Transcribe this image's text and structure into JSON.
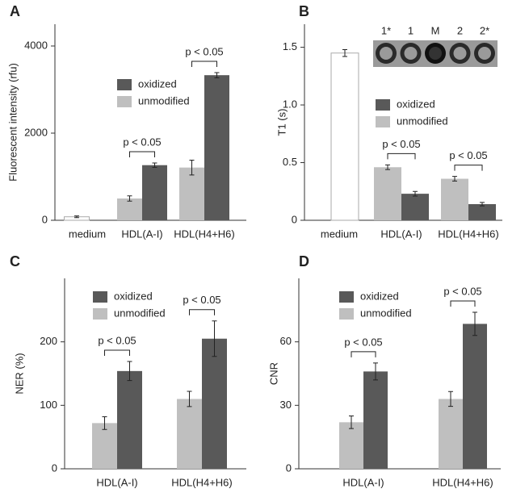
{
  "chart_data": [
    {
      "type": "bar",
      "panel_label": "A",
      "y_label": "Fluorescent intensity (rfu)",
      "categories": [
        "medium",
        "HDL(A-I)",
        "HDL(H4+H6)"
      ],
      "series": [
        {
          "color": "#ffffff",
          "values": [
            80,
            null,
            null
          ],
          "errors": [
            20,
            null,
            null
          ]
        },
        {
          "name": "unmodified",
          "color": "#bfbfbf",
          "values": [
            null,
            500,
            1210
          ],
          "errors": [
            null,
            60,
            170
          ]
        },
        {
          "name": "oxidized",
          "color": "#595959",
          "values": [
            null,
            1265,
            3330
          ],
          "errors": [
            null,
            50,
            60
          ]
        }
      ],
      "annotations": [
        {
          "text": "p < 0.05",
          "category": 1
        },
        {
          "text": "p < 0.05",
          "category": 2
        }
      ],
      "ylim": [
        0,
        4500
      ],
      "yticks": [
        0,
        2000,
        4000
      ]
    },
    {
      "type": "bar",
      "panel_label": "B",
      "y_label": "T1 (s)",
      "categories": [
        "medium",
        "HDL(A-I)",
        "HDL(H4+H6)"
      ],
      "series": [
        {
          "color": "#ffffff",
          "values": [
            1.45,
            null,
            null
          ],
          "errors": [
            0.03,
            null,
            null
          ]
        },
        {
          "name": "unmodified",
          "color": "#bfbfbf",
          "values": [
            null,
            0.46,
            0.36
          ],
          "errors": [
            null,
            0.02,
            0.02
          ]
        },
        {
          "name": "oxidized",
          "color": "#595959",
          "values": [
            null,
            0.23,
            0.14
          ],
          "errors": [
            null,
            0.02,
            0.015
          ]
        }
      ],
      "annotations": [
        {
          "text": "p < 0.05",
          "category": 1
        },
        {
          "text": "p < 0.05",
          "category": 2
        }
      ],
      "inset_labels": [
        "1*",
        "1",
        "M",
        "2",
        "2*"
      ],
      "ylim": [
        0,
        1.7
      ],
      "yticks": [
        0,
        0.5,
        {
          "value": 1,
          "label": "1.0"
        },
        1.5
      ]
    },
    {
      "type": "bar",
      "panel_label": "C",
      "y_label": "NER (%)",
      "categories": [
        "HDL(A-I)",
        "HDL(H4+H6)"
      ],
      "series": [
        {
          "name": "unmodified",
          "color": "#bfbfbf",
          "values": [
            72,
            110
          ],
          "errors": [
            10,
            12
          ]
        },
        {
          "name": "oxidized",
          "color": "#595959",
          "values": [
            154,
            205
          ],
          "errors": [
            15,
            28
          ]
        }
      ],
      "annotations": [
        {
          "text": "p < 0.05",
          "category": 0
        },
        {
          "text": "p < 0.05",
          "category": 1
        }
      ],
      "ylim": [
        0,
        300
      ],
      "yticks": [
        0,
        100,
        200
      ]
    },
    {
      "type": "bar",
      "panel_label": "D",
      "y_label": "CNR",
      "categories": [
        "HDL(A-I)",
        "HDL(H4+H6)"
      ],
      "series": [
        {
          "name": "unmodified",
          "color": "#bfbfbf",
          "values": [
            22,
            33
          ],
          "errors": [
            3,
            3.5
          ]
        },
        {
          "name": "oxidized",
          "color": "#595959",
          "values": [
            46,
            68.5
          ],
          "errors": [
            4,
            5.5
          ]
        }
      ],
      "annotations": [
        {
          "text": "p < 0.05",
          "category": 0
        },
        {
          "text": "p < 0.05",
          "category": 1
        }
      ],
      "ylim": [
        0,
        90
      ],
      "yticks": [
        0,
        30,
        60
      ]
    }
  ]
}
